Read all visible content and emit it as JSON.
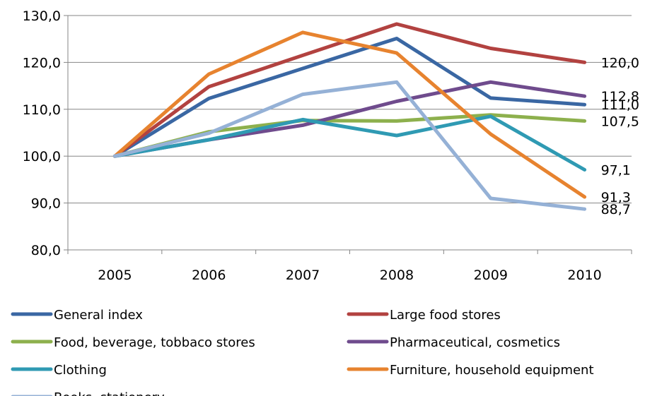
{
  "chart_data": {
    "type": "line",
    "categories": [
      "2005",
      "2006",
      "2007",
      "2008",
      "2009",
      "2010"
    ],
    "ylim": [
      80,
      130
    ],
    "yticks": [
      "80,0",
      "90,0",
      "100,0",
      "110,0",
      "120,0",
      "130,0"
    ],
    "grid": "horizontal",
    "legend_position": "bottom",
    "series": [
      {
        "name": "General index",
        "color": "#3a67a3",
        "values": [
          100,
          112.3,
          118.7,
          125.1,
          112.4,
          111.0
        ],
        "end_label": "111,0"
      },
      {
        "name": "Large food stores",
        "color": "#b24240",
        "values": [
          100,
          114.8,
          121.5,
          128.2,
          123.0,
          120.0
        ],
        "end_label": "120,0"
      },
      {
        "name": "Food, beverage, tobbaco stores",
        "color": "#8db04d",
        "values": [
          100,
          105.2,
          107.6,
          107.5,
          108.8,
          107.5
        ],
        "end_label": "107,5"
      },
      {
        "name": "Pharmaceutical, cosmetics",
        "color": "#6f4b8d",
        "values": [
          100,
          103.5,
          106.6,
          111.7,
          115.8,
          112.8
        ],
        "end_label": "112,8"
      },
      {
        "name": "Clothing",
        "color": "#2f9ab3",
        "values": [
          100,
          103.5,
          107.8,
          104.4,
          108.5,
          97.1
        ],
        "end_label": "97,1"
      },
      {
        "name": "Furniture,  household equipment",
        "color": "#e7832f",
        "values": [
          100,
          117.5,
          126.4,
          122.0,
          104.7,
          91.3
        ],
        "end_label": "91,3"
      },
      {
        "name": "Books, stationery",
        "color": "#95b1d6",
        "values": [
          100,
          104.9,
          113.2,
          115.8,
          91.0,
          88.7
        ],
        "end_label": "88,7"
      }
    ]
  }
}
